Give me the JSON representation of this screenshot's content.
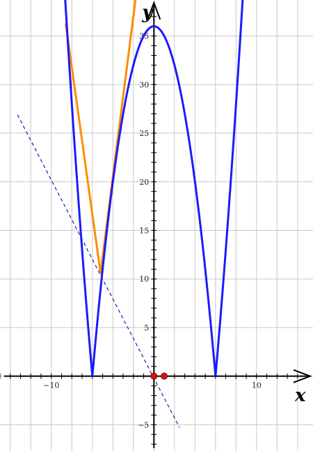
{
  "chart_data": {
    "type": "line",
    "xlabel": "x",
    "ylabel": "y",
    "xlim": [
      -15,
      15.5
    ],
    "ylim": [
      -7.7,
      38.7
    ],
    "grid": true,
    "grid_step": {
      "x": 2,
      "y": 5
    },
    "x_ticks": [
      -10,
      10
    ],
    "y_ticks": [
      -5,
      5,
      10,
      15,
      20,
      25,
      30,
      35
    ],
    "x_tick_labels": [
      "−10",
      "10"
    ],
    "y_tick_labels": [
      "−5",
      "5",
      "10",
      "15",
      "20",
      "25",
      "30",
      "35"
    ],
    "curve": {
      "expression": "|36 - x^2|",
      "color": "#1a1aff",
      "x_range": [
        -8.8,
        8.8
      ],
      "vertices": [
        [
          -6,
          0
        ],
        [
          0,
          36
        ],
        [
          6,
          0
        ]
      ]
    },
    "orange_polyline": {
      "color": "#ff8c00",
      "points": [
        [
          -8.6,
          36.3
        ],
        [
          -5.2,
          10.6
        ],
        [
          -1.8,
          38.7
        ]
      ]
    },
    "dashed_line": {
      "color": "#1a1aaa",
      "points": [
        [
          -13.3,
          26.9
        ],
        [
          2.5,
          -5.3
        ]
      ]
    },
    "points": [
      {
        "x": 0,
        "y": 0,
        "color": "#dd1111"
      },
      {
        "x": 1,
        "y": 0,
        "color": "#dd1111"
      }
    ]
  }
}
